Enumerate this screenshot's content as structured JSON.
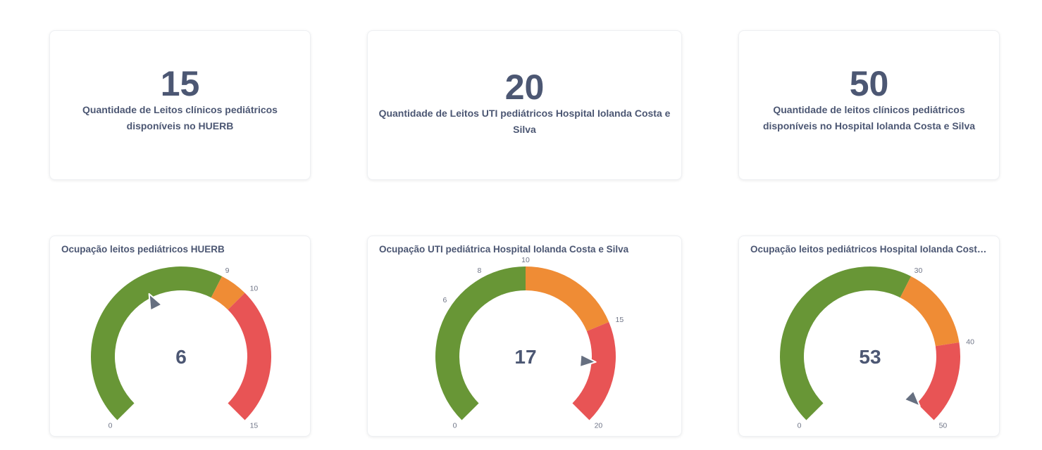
{
  "scalars": [
    {
      "value": "15",
      "label": "Quantidade de Leitos clínicos pediátricos disponíveis no HUERB"
    },
    {
      "value": "20",
      "label": "Quantidade de Leitos UTI pediátricos Hospital Iolanda Costa e Silva"
    },
    {
      "value": "50",
      "label": "Quantidade de leitos clínicos pediátricos disponíveis no Hospital Iolanda Costa e Silva"
    }
  ],
  "gauges": [
    {
      "title": "Ocupação leitos pediátricos HUERB",
      "value": 6,
      "value_label": "6",
      "min": 0,
      "max": 15,
      "segments": [
        {
          "from": 0,
          "to": 9,
          "color": "#689636"
        },
        {
          "from": 9,
          "to": 10,
          "color": "#ef8c35"
        },
        {
          "from": 10,
          "to": 15,
          "color": "#e85455"
        }
      ],
      "ticks": [
        "0",
        "9",
        "10",
        "15"
      ]
    },
    {
      "title": "Ocupação UTI pediátrica Hospital Iolanda Costa e Silva",
      "value": 17,
      "value_label": "17",
      "min": 0,
      "max": 20,
      "segments": [
        {
          "from": 0,
          "to": 10,
          "color": "#689636"
        },
        {
          "from": 10,
          "to": 15,
          "color": "#ef8c35"
        },
        {
          "from": 15,
          "to": 20,
          "color": "#e85455"
        }
      ],
      "ticks": [
        "0",
        "6",
        "8",
        "10",
        "15",
        "20"
      ]
    },
    {
      "title": "Ocupação leitos pediátricos Hospital Iolanda Costa e Silva",
      "value": 53,
      "value_label": "53",
      "min": 0,
      "max": 50,
      "segments": [
        {
          "from": 0,
          "to": 30,
          "color": "#689636"
        },
        {
          "from": 30,
          "to": 40,
          "color": "#ef8c35"
        },
        {
          "from": 40,
          "to": 50,
          "color": "#e85455"
        }
      ],
      "ticks": [
        "0",
        "30",
        "40",
        "50"
      ]
    }
  ],
  "colors": {
    "text": "#4c5773",
    "tick": "#6f7587",
    "pointer": "#666f80"
  }
}
